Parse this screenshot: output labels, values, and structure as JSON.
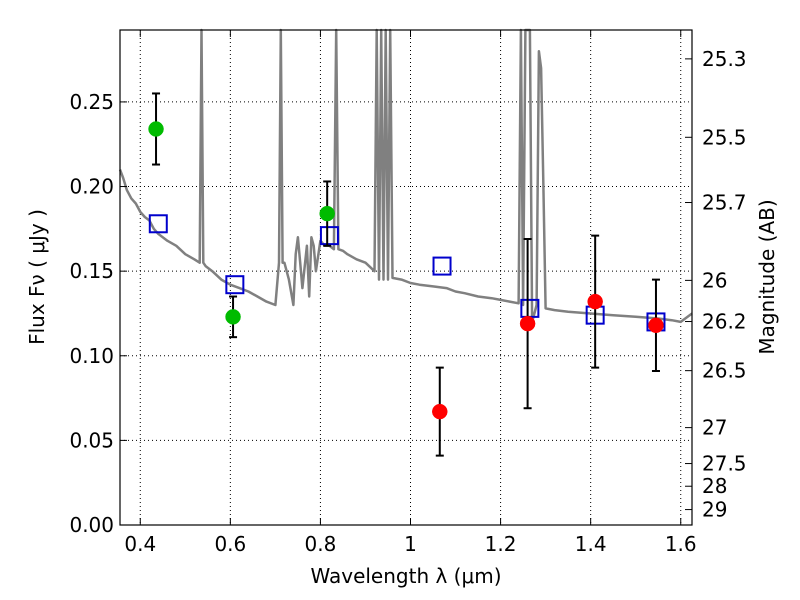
{
  "chart_data": {
    "type": "scatter",
    "xlabel": "Wavelength  λ (μm)",
    "ylabel": "Flux  Fν  ( μJy )",
    "ylabel2": "Magnitude (AB)",
    "xlim": [
      0.355,
      1.625
    ],
    "ylim": [
      0.0,
      0.2925
    ],
    "grid": true,
    "x_ticks": [
      {
        "v": 0.4,
        "label": "0.4"
      },
      {
        "v": 0.6,
        "label": "0.6"
      },
      {
        "v": 0.8,
        "label": "0.8"
      },
      {
        "v": 1.0,
        "label": "1"
      },
      {
        "v": 1.2,
        "label": "1.2"
      },
      {
        "v": 1.4,
        "label": "1.4"
      },
      {
        "v": 1.6,
        "label": "1.6"
      }
    ],
    "y_ticks": [
      {
        "v": 0.0,
        "label": "0.00"
      },
      {
        "v": 0.05,
        "label": "0.05"
      },
      {
        "v": 0.1,
        "label": "0.10"
      },
      {
        "v": 0.15,
        "label": "0.15"
      },
      {
        "v": 0.2,
        "label": "0.20"
      },
      {
        "v": 0.25,
        "label": "0.25"
      }
    ],
    "y2_ticks": [
      {
        "mag": 25.3,
        "label": "25.3"
      },
      {
        "mag": 25.5,
        "label": "25.5"
      },
      {
        "mag": 25.7,
        "label": "25.7"
      },
      {
        "mag": 26,
        "label": "26"
      },
      {
        "mag": 26.2,
        "label": "26.2"
      },
      {
        "mag": 26.5,
        "label": "26.5"
      },
      {
        "mag": 27,
        "label": "27"
      },
      {
        "mag": 27.5,
        "label": "27.5"
      },
      {
        "mag": 28,
        "label": "28"
      },
      {
        "mag": 29,
        "label": "29"
      }
    ],
    "series": [
      {
        "kind": "line",
        "color": "#808080",
        "x": [
          0.355,
          0.362,
          0.37,
          0.38,
          0.39,
          0.4,
          0.41,
          0.42,
          0.43,
          0.44,
          0.46,
          0.48,
          0.5,
          0.52,
          0.532,
          0.536,
          0.54,
          0.545,
          0.56,
          0.58,
          0.6,
          0.62,
          0.64,
          0.66,
          0.68,
          0.7,
          0.708,
          0.712,
          0.716,
          0.72,
          0.73,
          0.74,
          0.745,
          0.75,
          0.755,
          0.76,
          0.77,
          0.775,
          0.78,
          0.785,
          0.79,
          0.8,
          0.81,
          0.82,
          0.83,
          0.835,
          0.84,
          0.85,
          0.86,
          0.88,
          0.9,
          0.92,
          0.925,
          0.93,
          0.935,
          0.94,
          0.945,
          0.95,
          0.955,
          0.96,
          0.98,
          1.0,
          1.02,
          1.05,
          1.08,
          1.1,
          1.12,
          1.15,
          1.18,
          1.2,
          1.22,
          1.24,
          1.245,
          1.25,
          1.255,
          1.26,
          1.262,
          1.265,
          1.27,
          1.275,
          1.28,
          1.285,
          1.29,
          1.295,
          1.3,
          1.32,
          1.35,
          1.4,
          1.45,
          1.5,
          1.55,
          1.58,
          1.6,
          1.625
        ],
        "y": [
          0.21,
          0.205,
          0.198,
          0.193,
          0.19,
          0.185,
          0.182,
          0.18,
          0.175,
          0.172,
          0.168,
          0.165,
          0.16,
          0.157,
          0.155,
          0.32,
          0.155,
          0.153,
          0.15,
          0.145,
          0.142,
          0.14,
          0.138,
          0.135,
          0.132,
          0.13,
          0.155,
          0.32,
          0.155,
          0.155,
          0.145,
          0.13,
          0.16,
          0.17,
          0.155,
          0.14,
          0.165,
          0.135,
          0.17,
          0.165,
          0.15,
          0.168,
          0.165,
          0.165,
          0.163,
          0.32,
          0.163,
          0.162,
          0.16,
          0.157,
          0.155,
          0.15,
          0.32,
          0.145,
          0.32,
          0.145,
          0.32,
          0.145,
          0.32,
          0.146,
          0.145,
          0.143,
          0.142,
          0.141,
          0.14,
          0.138,
          0.137,
          0.135,
          0.134,
          0.133,
          0.132,
          0.131,
          0.32,
          0.13,
          0.32,
          0.32,
          0.32,
          0.32,
          0.12,
          0.125,
          0.13,
          0.28,
          0.27,
          0.2,
          0.128,
          0.127,
          0.126,
          0.125,
          0.124,
          0.123,
          0.122,
          0.121,
          0.12,
          0.125
        ]
      },
      {
        "kind": "open_square",
        "color": "#0000cc",
        "x": [
          0.44,
          0.61,
          0.82,
          1.07,
          1.265,
          1.41,
          1.545
        ],
        "y": [
          0.178,
          0.142,
          0.171,
          0.153,
          0.128,
          0.124,
          0.12
        ]
      },
      {
        "kind": "point",
        "color": "#00bb00",
        "x": [
          0.435,
          0.606,
          0.815
        ],
        "y": [
          0.234,
          0.123,
          0.184
        ],
        "err": [
          0.021,
          0.012,
          0.019
        ]
      },
      {
        "kind": "point",
        "color": "#ff0000",
        "x": [
          1.065,
          1.26,
          1.41,
          1.545
        ],
        "y": [
          0.067,
          0.119,
          0.132,
          0.118
        ],
        "err": [
          0.026,
          0.05,
          0.039,
          0.027
        ]
      }
    ]
  }
}
